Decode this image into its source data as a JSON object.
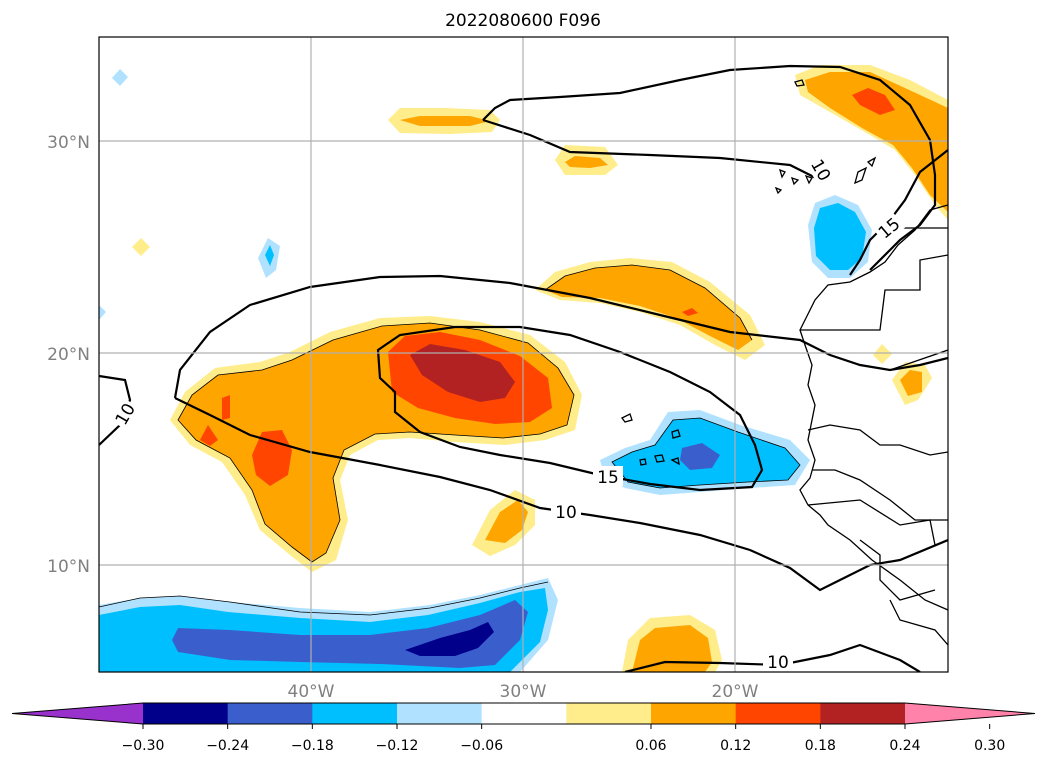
{
  "title": "2022080600 F096",
  "map": {
    "lat_labels": [
      "30°N",
      "20°N",
      "10°N"
    ],
    "lon_labels": [
      "40°W",
      "30°W",
      "20°W"
    ],
    "contour_labels": [
      "10",
      "10",
      "15",
      "15",
      "10",
      "10"
    ]
  },
  "colorbar": {
    "ticks": [
      "−0.30",
      "−0.24",
      "−0.18",
      "−0.12",
      "−0.06",
      "0.06",
      "0.12",
      "0.18",
      "0.24",
      "0.30"
    ],
    "colors": [
      "#9932cc",
      "#00008b",
      "#3a5fcd",
      "#00bfff",
      "#b0e2ff",
      "#ffffff",
      "#ffec8b",
      "#ffa500",
      "#ff4500",
      "#b22222",
      "#ff82ab"
    ]
  }
}
